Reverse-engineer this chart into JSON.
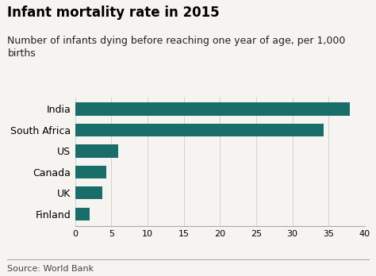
{
  "title": "Infant mortality rate in 2015",
  "subtitle": "Number of infants dying before reaching one year of age, per 1,000\nbirths",
  "categories": [
    "Finland",
    "UK",
    "Canada",
    "US",
    "South Africa",
    "India"
  ],
  "values": [
    2.0,
    3.8,
    4.3,
    5.9,
    34.3,
    37.9
  ],
  "bar_color": "#1a6e6a",
  "background_color": "#f5f4f0",
  "plot_bg_color": "#f5f4f0",
  "xlim": [
    0,
    40
  ],
  "xticks": [
    0,
    5,
    10,
    15,
    20,
    25,
    30,
    35,
    40
  ],
  "source": "Source: World Bank",
  "title_fontsize": 12,
  "subtitle_fontsize": 9,
  "source_fontsize": 8,
  "tick_fontsize": 8,
  "ylabel_fontsize": 9
}
